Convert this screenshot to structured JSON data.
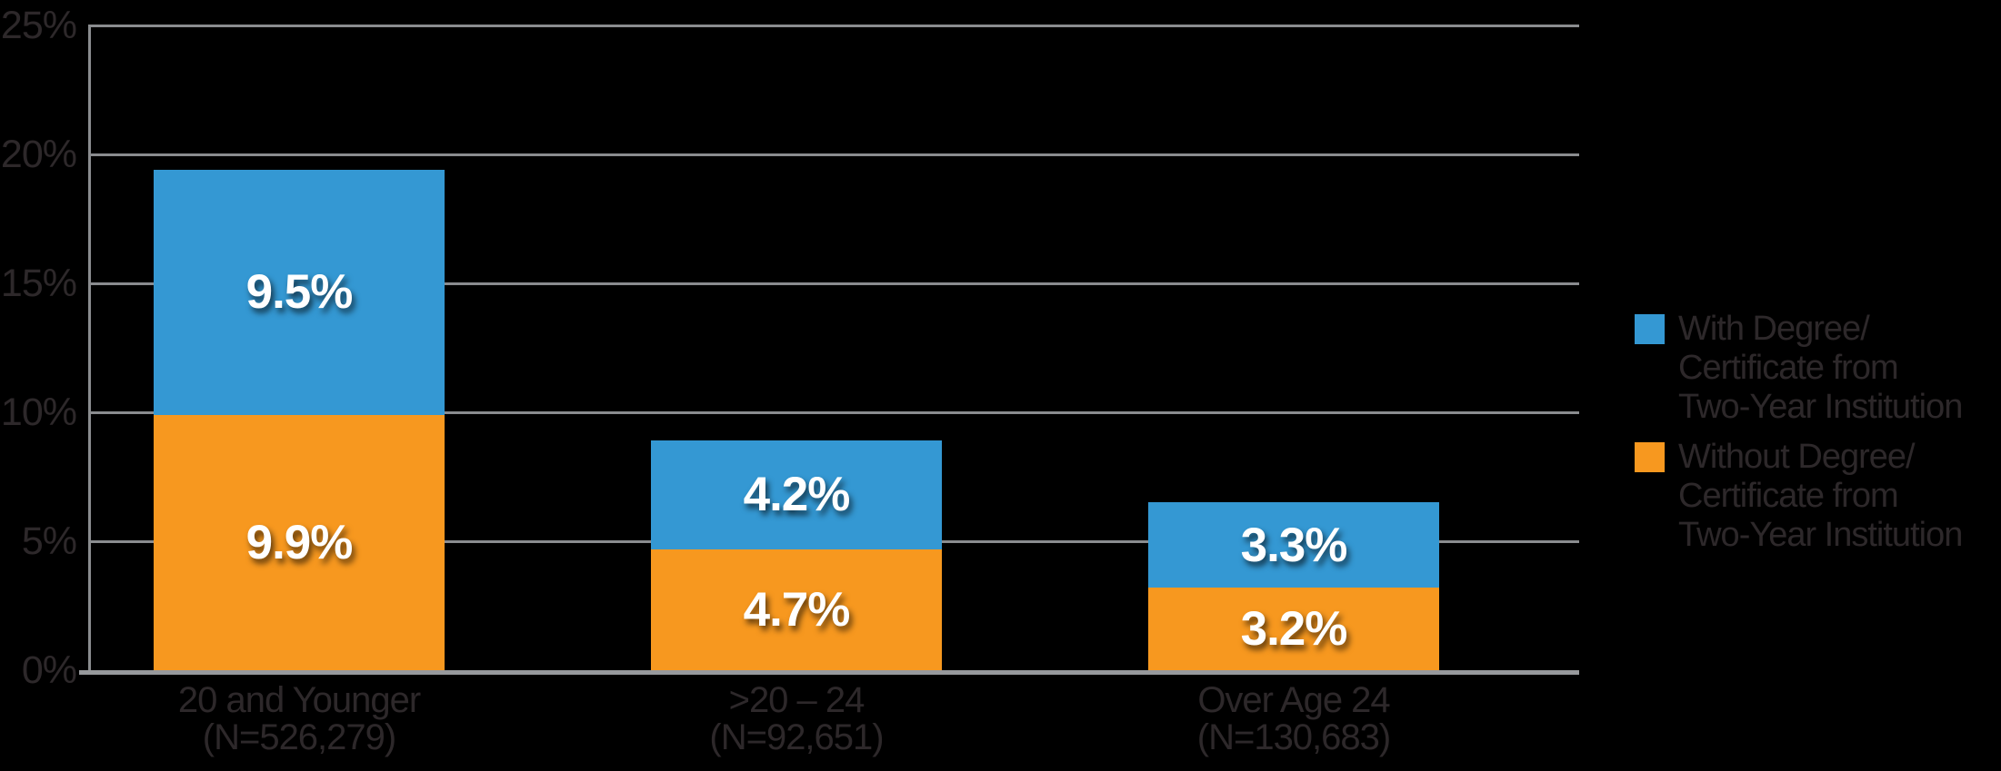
{
  "chart_data": {
    "type": "bar",
    "stacked": true,
    "title": "",
    "xlabel": "",
    "ylabel": "",
    "ylim": [
      0,
      25
    ],
    "grid": true,
    "legend_position": "right",
    "background_color": "#000000",
    "categories": [
      "20 and Younger\n(N=526,279)",
      ">20 – 24\n(N=92,651)",
      "Over Age 24\n(N=130,683)"
    ],
    "yticks": [
      {
        "value": 0,
        "label": "0%"
      },
      {
        "value": 5,
        "label": "5%"
      },
      {
        "value": 10,
        "label": "10%"
      },
      {
        "value": 15,
        "label": "15%"
      },
      {
        "value": 20,
        "label": "20%"
      },
      {
        "value": 25,
        "label": "25%"
      }
    ],
    "series": [
      {
        "name": "With Degree/Certificate from Two-Year Institution",
        "stack_position": "top",
        "color": "#3498D3",
        "values": [
          9.5,
          4.2,
          3.3
        ],
        "value_labels": [
          "9.5%",
          "4.2%",
          "3.3%"
        ]
      },
      {
        "name": "Without Degree/Certificate from Two-Year Institution",
        "stack_position": "bottom",
        "color": "#F7981F",
        "values": [
          9.9,
          4.7,
          3.2
        ],
        "value_labels": [
          "9.9%",
          "4.7%",
          "3.2%"
        ]
      }
    ]
  },
  "legend": {
    "items": [
      {
        "swatch_color": "#3498D3",
        "lines": [
          "With Degree/",
          "Certificate from",
          "Two-Year Institution"
        ]
      },
      {
        "swatch_color": "#F7981F",
        "lines": [
          "Without Degree/",
          "Certificate from",
          "Two-Year Institution"
        ]
      }
    ]
  },
  "colors": {
    "background": "#000000",
    "gridline": "#8A8C8F",
    "axis_line": "#97999C",
    "dark_text": "#2D282A",
    "value_text": "#FFFFFF"
  }
}
